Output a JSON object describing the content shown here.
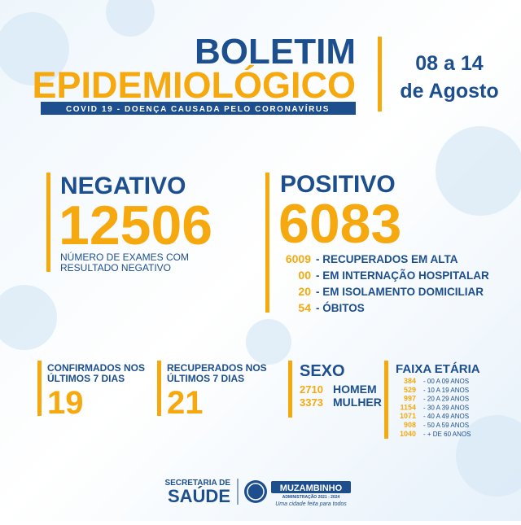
{
  "header": {
    "title_line1": "BOLETIM",
    "title_line2": "EPIDEMIOLÓGICO",
    "subtitle": "COVID 19 - DOENÇA CAUSADA PELO CORONAVÍRUS",
    "date_line1": "08 a 14",
    "date_line2": "de Agosto"
  },
  "negativo": {
    "label": "NEGATIVO",
    "value": "12506",
    "description_line1": "NÚMERO DE EXAMES COM",
    "description_line2": "RESULTADO NEGATIVO"
  },
  "positivo": {
    "label": "POSITIVO",
    "value": "6083",
    "items": [
      {
        "value": "6009",
        "label": "- RECUPERADOS EM ALTA"
      },
      {
        "value": "00",
        "label": "- EM INTERNAÇÃO HOSPITALAR"
      },
      {
        "value": "20",
        "label": "- EM ISOLAMENTO DOMICILIAR"
      },
      {
        "value": "54",
        "label": "- ÓBITOS"
      }
    ]
  },
  "last_7_days": [
    {
      "label_line1": "CONFIRMADOS NOS",
      "label_line2": "ÚLTIMOS 7 DIAS",
      "value": "19"
    },
    {
      "label_line1": "RECUPERADOS NOS",
      "label_line2": "ÚLTIMOS 7 DIAS",
      "value": "21"
    }
  ],
  "sexo": {
    "title": "SEXO",
    "rows": [
      {
        "value": "2710",
        "label": "HOMEM"
      },
      {
        "value": "3373",
        "label": "MULHER"
      }
    ]
  },
  "faixa_etaria": {
    "title": "FAIXA ETÁRIA",
    "rows": [
      {
        "value": "384",
        "label": "- 00 A 09 ANOS"
      },
      {
        "value": "529",
        "label": "- 10 A 19 ANOS"
      },
      {
        "value": "997",
        "label": "- 20 A 29 ANOS"
      },
      {
        "value": "1154",
        "label": "- 30 A 39 ANOS"
      },
      {
        "value": "1071",
        "label": "- 40 A 49 ANOS"
      },
      {
        "value": "908",
        "label": "- 50 A 59 ANOS"
      },
      {
        "value": "1040",
        "label": "- + DE 60 ANOS"
      }
    ]
  },
  "footer": {
    "secretaria_line1": "SECRETARIA DE",
    "secretaria_line2": "SAÚDE",
    "municipality": "MUZAMBINHO",
    "administration": "ADMINISTRAÇÃO 2021 - 2024",
    "tagline": "Uma cidade feita para todos"
  }
}
